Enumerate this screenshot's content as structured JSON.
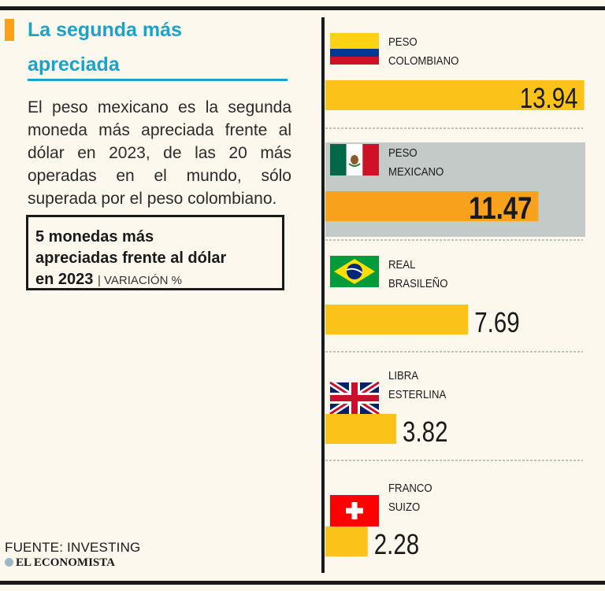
{
  "headline": {
    "line1": "La segunda más",
    "line2": "apreciada"
  },
  "body_text": "El peso mexicano es la segunda moneda más apreciada frente al dólar en 2023, de las 20 más operadas en el mundo, sólo superada por el peso colombiano.",
  "box": {
    "title_line1": "5 monedas más",
    "title_line2": "apreciadas frente al dólar",
    "title_line3": "en 2023",
    "subtitle": "VARIACIÓN %"
  },
  "source": "FUENTE: INVESTING",
  "brand": "EL ECONOMISTA",
  "colors": {
    "bar": "#fbc21a",
    "highlight_bar": "#f7a11c",
    "highlight_bg": "#c3cac8",
    "accent": "#1aa3c8"
  },
  "chart_data": {
    "type": "bar",
    "title": "5 monedas más apreciadas frente al dólar en 2023",
    "unit": "VARIACIÓN %",
    "orientation": "horizontal",
    "categories": [
      {
        "line1": "PESO",
        "line2": "COLOMBIANO",
        "flag": "colombia-flag-icon"
      },
      {
        "line1": "PESO",
        "line2": "MEXICANO",
        "flag": "mexico-flag-icon"
      },
      {
        "line1": "REAL",
        "line2": "BRASILEÑO",
        "flag": "brazil-flag-icon"
      },
      {
        "line1": "LIBRA",
        "line2": "ESTERLINA",
        "flag": "uk-flag-icon"
      },
      {
        "line1": "FRANCO",
        "line2": "SUIZO",
        "flag": "switzerland-flag-icon"
      }
    ],
    "values": [
      13.94,
      11.47,
      7.69,
      3.82,
      2.28
    ],
    "labels": [
      "13.94",
      "11.47",
      "7.69",
      "3.82",
      "2.28"
    ],
    "highlight_index": 1,
    "xlim": [
      0,
      14
    ]
  }
}
